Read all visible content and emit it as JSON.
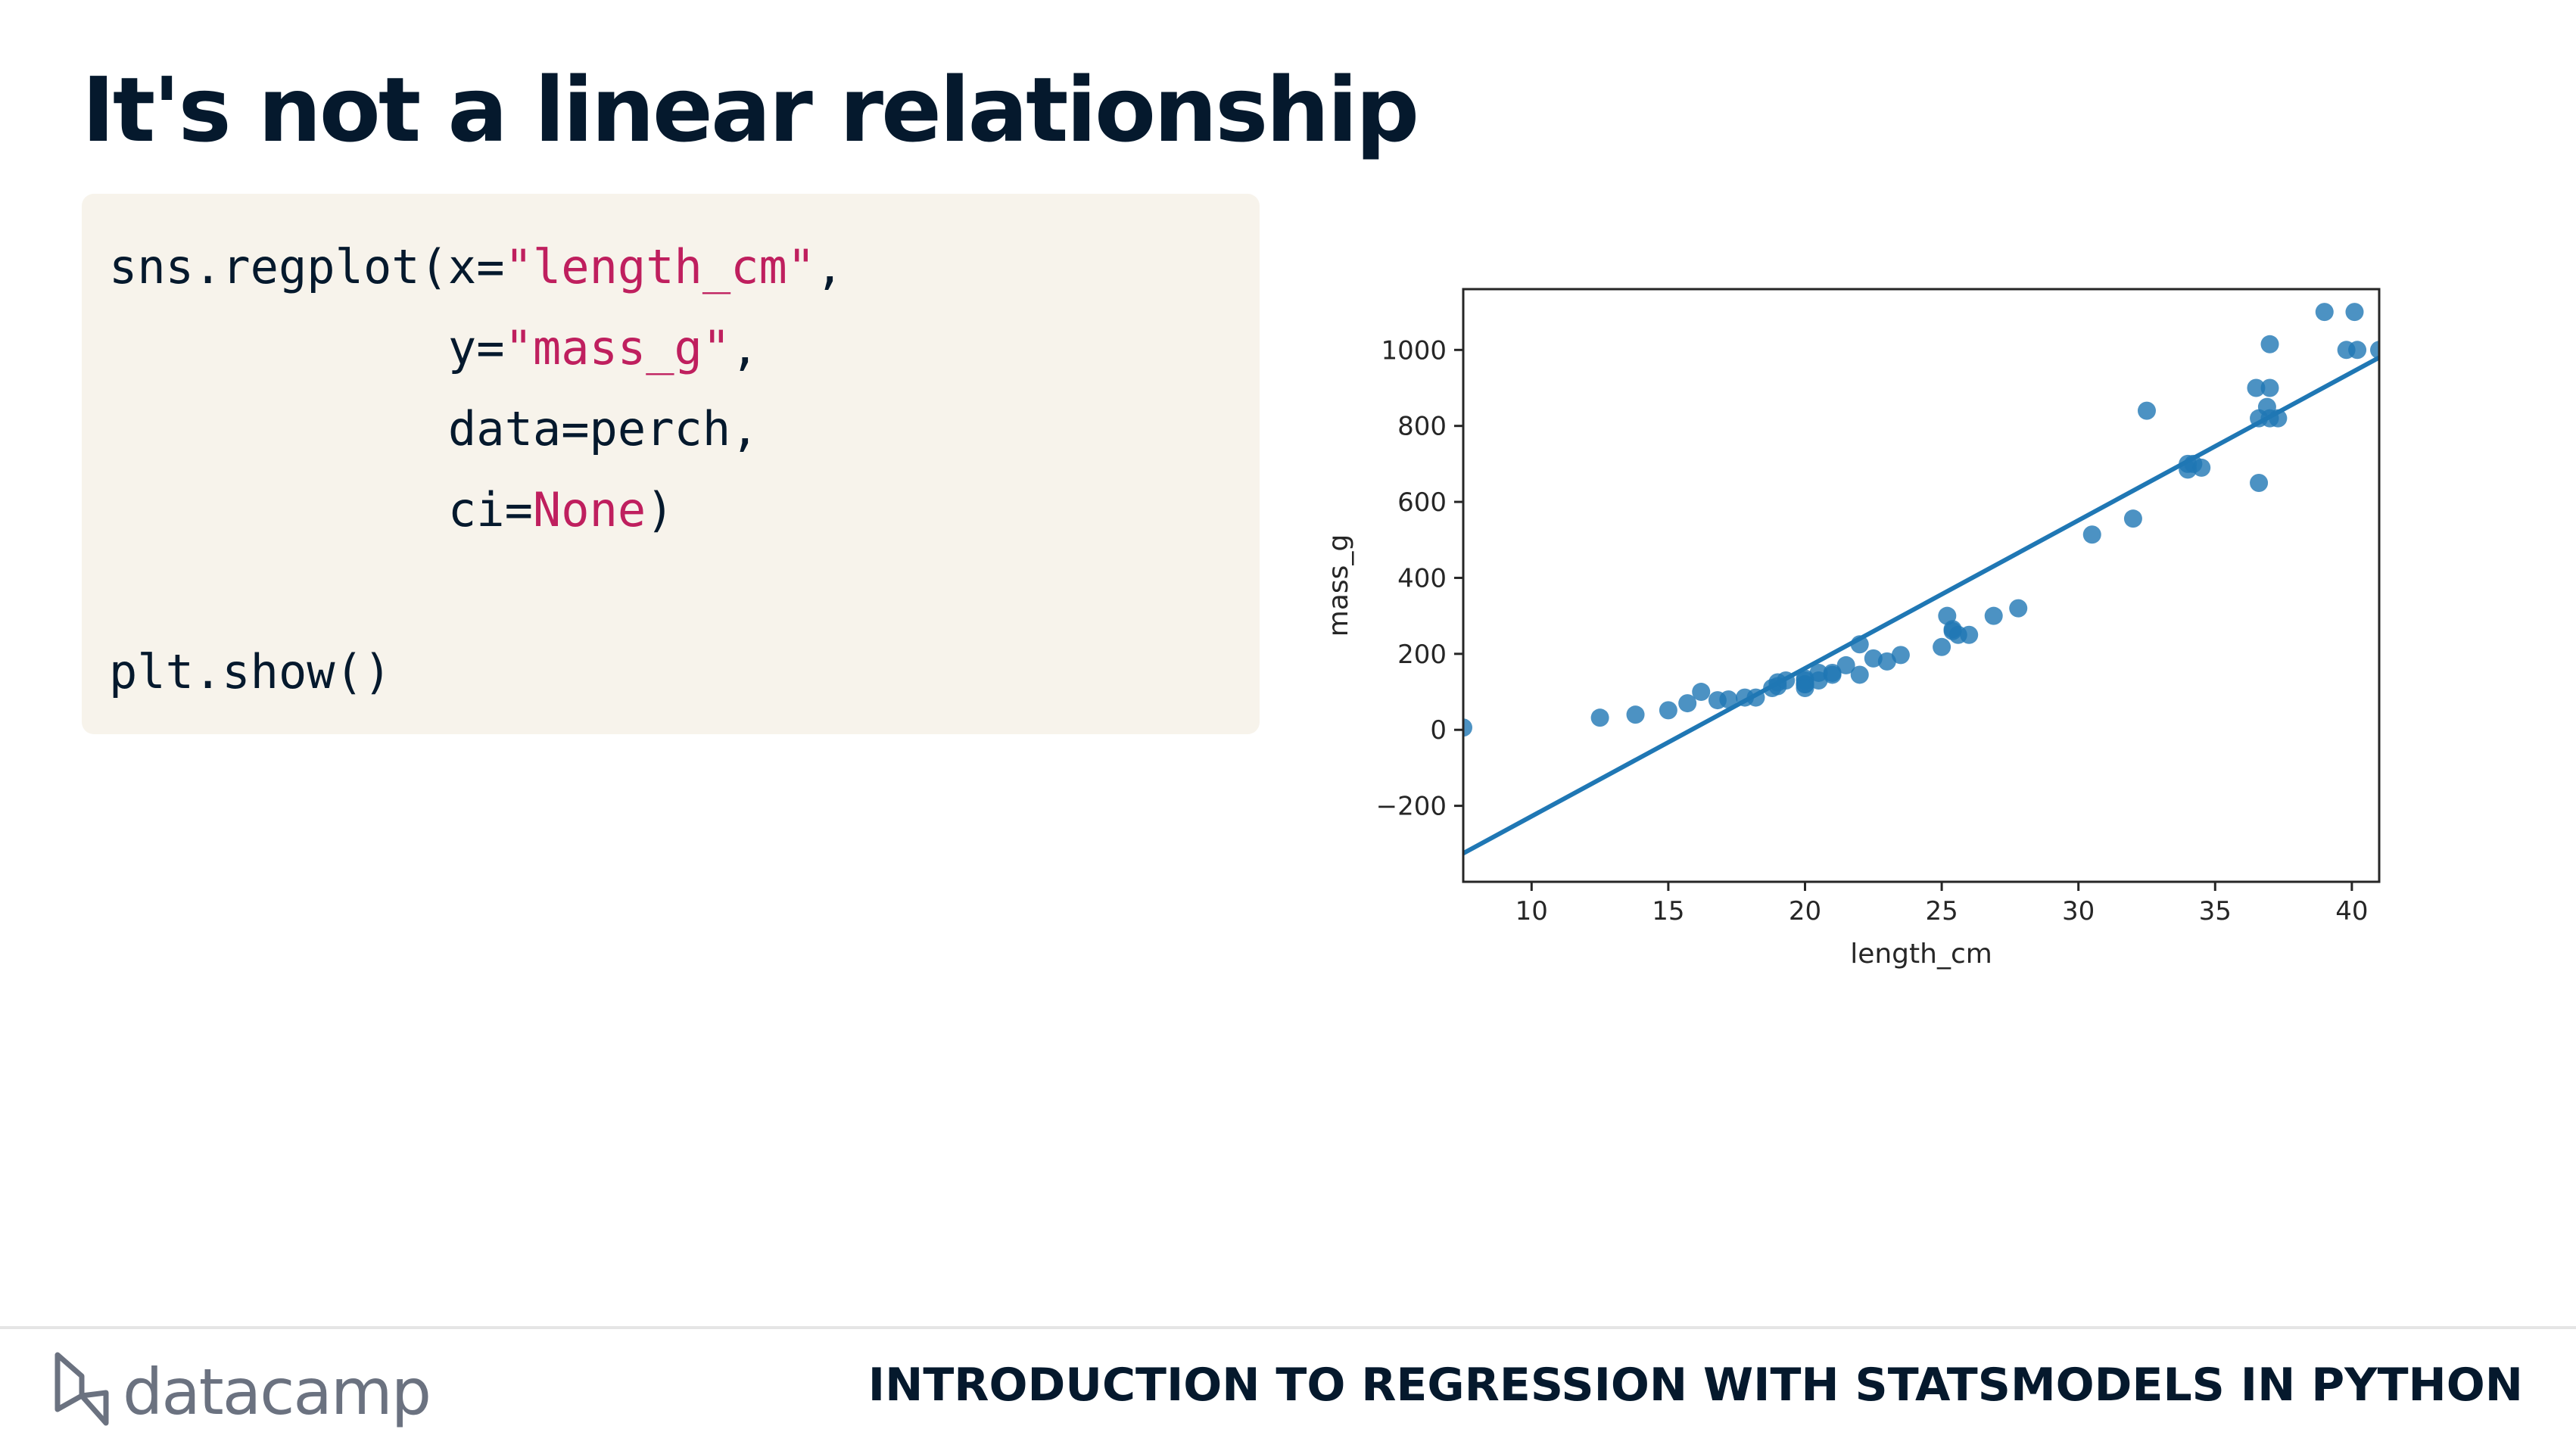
{
  "slide": {
    "title": "It's not a linear relationship",
    "course": "INTRODUCTION TO REGRESSION WITH STATSMODELS IN PYTHON",
    "brand": "datacamp"
  },
  "code": [
    [
      {
        "t": "sns.regplot(x="
      },
      {
        "t": "\"length_cm\"",
        "s": "str"
      },
      {
        "t": ","
      }
    ],
    [
      {
        "t": "            y="
      },
      {
        "t": "\"mass_g\"",
        "s": "str"
      },
      {
        "t": ","
      }
    ],
    [
      {
        "t": "            data=perch,"
      }
    ],
    [
      {
        "t": "            ci="
      },
      {
        "t": "None",
        "s": "str"
      },
      {
        "t": ")"
      }
    ],
    [
      {
        "t": ""
      }
    ],
    [
      {
        "t": "plt.show()"
      }
    ]
  ],
  "colors": {
    "code_string": "#bf1f5e",
    "code_text": "#05192d",
    "code_bg": "#f7f3eb",
    "marker": "#1f77b4",
    "regression_line": "#1f77b4"
  },
  "chart_data": {
    "type": "scatter",
    "xlabel": "length_cm",
    "ylabel": "mass_g",
    "xlim": [
      7.5,
      41.0
    ],
    "ylim": [
      -400,
      1160
    ],
    "xticks": [
      10,
      15,
      20,
      25,
      30,
      35,
      40
    ],
    "yticks": [
      -200,
      0,
      200,
      400,
      600,
      800,
      1000
    ],
    "grid": false,
    "regression_line": {
      "x": [
        7.5,
        41.0
      ],
      "y": [
        -325,
        980
      ]
    },
    "points": [
      [
        7.5,
        5.9
      ],
      [
        12.5,
        32
      ],
      [
        13.8,
        40
      ],
      [
        15.0,
        51.5
      ],
      [
        15.7,
        70
      ],
      [
        16.2,
        100
      ],
      [
        16.8,
        78
      ],
      [
        17.2,
        80
      ],
      [
        17.8,
        85
      ],
      [
        18.2,
        85
      ],
      [
        18.8,
        110
      ],
      [
        19.0,
        115
      ],
      [
        19.0,
        125
      ],
      [
        19.3,
        130
      ],
      [
        20.0,
        120
      ],
      [
        20.0,
        120
      ],
      [
        20.0,
        130
      ],
      [
        20.0,
        135
      ],
      [
        20.0,
        110
      ],
      [
        20.5,
        130
      ],
      [
        20.5,
        150
      ],
      [
        21.0,
        145
      ],
      [
        21.0,
        150
      ],
      [
        21.5,
        170
      ],
      [
        22.0,
        225
      ],
      [
        22.0,
        145
      ],
      [
        22.5,
        188
      ],
      [
        23.0,
        180
      ],
      [
        23.5,
        197
      ],
      [
        25.0,
        218
      ],
      [
        25.2,
        300
      ],
      [
        25.4,
        260
      ],
      [
        25.4,
        265
      ],
      [
        25.6,
        250
      ],
      [
        26.0,
        250
      ],
      [
        26.9,
        300
      ],
      [
        27.8,
        320
      ],
      [
        30.5,
        514
      ],
      [
        32.0,
        556
      ],
      [
        32.5,
        840
      ],
      [
        34.0,
        685
      ],
      [
        34.0,
        700
      ],
      [
        34.2,
        700
      ],
      [
        34.5,
        690
      ],
      [
        36.5,
        900
      ],
      [
        36.6,
        650
      ],
      [
        36.6,
        820
      ],
      [
        36.9,
        850
      ],
      [
        37.0,
        900
      ],
      [
        37.0,
        1015
      ],
      [
        37.0,
        820
      ],
      [
        37.3,
        820
      ],
      [
        39.0,
        1100
      ],
      [
        39.8,
        1000
      ],
      [
        40.1,
        1100
      ],
      [
        40.2,
        1000
      ],
      [
        41.0,
        1000
      ]
    ]
  }
}
